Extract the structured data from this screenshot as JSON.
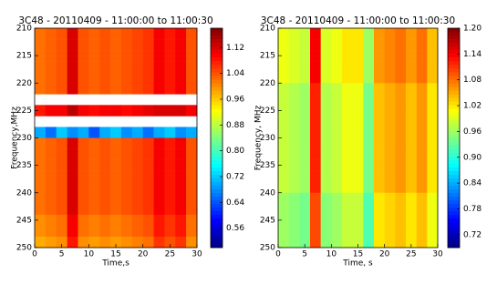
{
  "chart_data": [
    {
      "type": "heatmap",
      "title": "3C48 - 20110409 - 11:00:00 to 11:00:30",
      "x_label": "Time,s",
      "y_label": "Frequency,MHz",
      "colormap": "jet",
      "y_inverted": true,
      "xbins": [
        0,
        2,
        4,
        6,
        8,
        10,
        12,
        14,
        16,
        18,
        20,
        22,
        24,
        26,
        28,
        30
      ],
      "ybins": [
        210,
        212,
        214,
        216,
        218,
        220,
        222,
        224,
        226,
        228,
        230,
        232,
        234,
        236,
        238,
        240,
        242,
        244,
        246,
        248,
        250
      ],
      "values": [
        [
          1.02,
          1.03,
          1.04,
          1.12,
          1.04,
          1.03,
          1.04,
          1.03,
          1.04,
          1.05,
          1.06,
          1.1,
          1.08,
          1.1,
          1.04
        ],
        [
          1.02,
          1.03,
          1.04,
          1.12,
          1.04,
          1.03,
          1.04,
          1.03,
          1.04,
          1.05,
          1.06,
          1.1,
          1.08,
          1.1,
          1.04
        ],
        [
          1.02,
          1.03,
          1.04,
          1.12,
          1.04,
          1.03,
          1.04,
          1.03,
          1.04,
          1.05,
          1.06,
          1.1,
          1.08,
          1.1,
          1.04
        ],
        [
          1.02,
          1.03,
          1.04,
          1.12,
          1.04,
          1.03,
          1.04,
          1.03,
          1.04,
          1.05,
          1.06,
          1.1,
          1.08,
          1.1,
          1.04
        ],
        [
          1.02,
          1.03,
          1.04,
          1.12,
          1.04,
          1.03,
          1.04,
          1.03,
          1.04,
          1.05,
          1.06,
          1.1,
          1.08,
          1.1,
          1.04
        ],
        [
          1.02,
          1.03,
          1.04,
          1.12,
          1.04,
          1.03,
          1.04,
          1.03,
          1.04,
          1.05,
          1.06,
          1.1,
          1.08,
          1.1,
          1.04
        ],
        [
          null,
          null,
          null,
          null,
          null,
          null,
          null,
          null,
          null,
          null,
          null,
          null,
          null,
          null,
          null
        ],
        [
          1.08,
          1.1,
          1.1,
          1.14,
          1.1,
          1.09,
          1.1,
          1.1,
          1.09,
          1.1,
          1.11,
          1.12,
          1.12,
          1.12,
          1.1
        ],
        [
          null,
          null,
          null,
          null,
          null,
          null,
          null,
          null,
          null,
          null,
          null,
          null,
          null,
          null,
          null
        ],
        [
          0.7,
          0.66,
          0.72,
          0.68,
          0.7,
          0.64,
          0.7,
          0.72,
          0.68,
          0.7,
          0.66,
          0.7,
          0.72,
          0.68,
          0.7
        ],
        [
          1.02,
          1.03,
          1.04,
          1.12,
          1.04,
          1.03,
          1.04,
          1.03,
          1.04,
          1.05,
          1.06,
          1.1,
          1.08,
          1.1,
          1.04
        ],
        [
          1.02,
          1.03,
          1.04,
          1.12,
          1.04,
          1.03,
          1.04,
          1.03,
          1.04,
          1.05,
          1.06,
          1.1,
          1.08,
          1.1,
          1.04
        ],
        [
          1.02,
          1.03,
          1.04,
          1.12,
          1.04,
          1.03,
          1.04,
          1.03,
          1.04,
          1.05,
          1.06,
          1.1,
          1.08,
          1.1,
          1.04
        ],
        [
          1.02,
          1.03,
          1.04,
          1.12,
          1.04,
          1.03,
          1.04,
          1.03,
          1.04,
          1.05,
          1.06,
          1.1,
          1.08,
          1.1,
          1.04
        ],
        [
          1.02,
          1.03,
          1.04,
          1.12,
          1.04,
          1.03,
          1.04,
          1.03,
          1.04,
          1.05,
          1.06,
          1.1,
          1.08,
          1.1,
          1.04
        ],
        [
          1.02,
          1.03,
          1.04,
          1.12,
          1.04,
          1.03,
          1.04,
          1.03,
          1.04,
          1.05,
          1.06,
          1.1,
          1.08,
          1.1,
          1.04
        ],
        [
          1.02,
          1.03,
          1.04,
          1.12,
          1.04,
          1.03,
          1.04,
          1.03,
          1.04,
          1.05,
          1.06,
          1.1,
          1.08,
          1.1,
          1.04
        ],
        [
          1.0,
          1.01,
          1.02,
          1.1,
          1.02,
          1.01,
          1.02,
          1.01,
          1.02,
          1.03,
          1.04,
          1.08,
          1.06,
          1.08,
          1.02
        ],
        [
          1.0,
          1.01,
          1.02,
          1.1,
          1.02,
          1.01,
          1.02,
          1.01,
          1.02,
          1.03,
          1.04,
          1.08,
          1.06,
          1.08,
          1.02
        ],
        [
          0.98,
          0.99,
          1.0,
          1.08,
          1.0,
          0.99,
          1.0,
          0.99,
          1.0,
          1.01,
          1.02,
          1.06,
          1.04,
          1.06,
          1.0
        ]
      ],
      "xlim": [
        0,
        30
      ],
      "xticks": [
        0,
        5,
        10,
        15,
        20,
        25,
        30
      ],
      "ylim": [
        210,
        250
      ],
      "yticks": [
        210,
        215,
        220,
        225,
        230,
        235,
        240,
        245,
        250
      ],
      "clim": [
        0.5,
        1.18
      ],
      "cticks": [
        0.56,
        0.64,
        0.72,
        {
          "value": 0.8,
          "label": "0.80"
        },
        0.88,
        0.96,
        1.04,
        1.12
      ]
    },
    {
      "type": "heatmap",
      "title": "3C48 - 20110409 - 11:00:00 to 11:00:30",
      "x_label": "Time, s",
      "y_label": "Frequency, MHz",
      "colormap": "jet",
      "y_inverted": true,
      "xbins": [
        0,
        2,
        4,
        6,
        8,
        10,
        12,
        14,
        16,
        18,
        20,
        22,
        24,
        26,
        28,
        30
      ],
      "ybins": [
        210,
        212,
        214,
        216,
        218,
        220,
        222,
        224,
        226,
        228,
        230,
        232,
        234,
        236,
        238,
        240,
        242,
        244,
        246,
        248,
        250
      ],
      "values": [
        [
          1.0,
          0.99,
          0.98,
          1.14,
          0.99,
          1.0,
          1.02,
          1.02,
          0.96,
          1.06,
          1.07,
          1.08,
          1.06,
          1.08,
          1.04
        ],
        [
          1.0,
          0.99,
          0.98,
          1.14,
          0.99,
          1.0,
          1.02,
          1.02,
          0.96,
          1.06,
          1.07,
          1.08,
          1.06,
          1.08,
          1.04
        ],
        [
          1.0,
          0.99,
          0.98,
          1.14,
          0.99,
          1.0,
          1.02,
          1.02,
          0.96,
          1.06,
          1.07,
          1.08,
          1.06,
          1.08,
          1.04
        ],
        [
          1.0,
          0.99,
          0.98,
          1.14,
          0.99,
          1.0,
          1.02,
          1.02,
          0.96,
          1.06,
          1.07,
          1.08,
          1.06,
          1.08,
          1.04
        ],
        [
          1.0,
          0.99,
          0.98,
          1.14,
          0.99,
          1.0,
          1.02,
          1.02,
          0.96,
          1.06,
          1.07,
          1.08,
          1.06,
          1.08,
          1.04
        ],
        [
          0.98,
          0.97,
          0.96,
          1.12,
          0.97,
          0.98,
          1.0,
          1.0,
          0.94,
          1.04,
          1.05,
          1.06,
          1.04,
          1.06,
          1.02
        ],
        [
          0.98,
          0.97,
          0.96,
          1.12,
          0.97,
          0.98,
          1.0,
          1.0,
          0.94,
          1.04,
          1.05,
          1.06,
          1.04,
          1.06,
          1.02
        ],
        [
          0.98,
          0.97,
          0.96,
          1.12,
          0.97,
          0.98,
          1.0,
          1.0,
          0.94,
          1.04,
          1.05,
          1.06,
          1.04,
          1.06,
          1.02
        ],
        [
          0.98,
          0.97,
          0.96,
          1.12,
          0.97,
          0.98,
          1.0,
          1.0,
          0.94,
          1.04,
          1.05,
          1.06,
          1.04,
          1.06,
          1.02
        ],
        [
          0.98,
          0.97,
          0.96,
          1.12,
          0.97,
          0.98,
          1.0,
          1.0,
          0.94,
          1.04,
          1.05,
          1.06,
          1.04,
          1.06,
          1.02
        ],
        [
          0.98,
          0.97,
          0.96,
          1.12,
          0.97,
          0.98,
          1.0,
          1.0,
          0.94,
          1.04,
          1.05,
          1.06,
          1.04,
          1.06,
          1.02
        ],
        [
          0.98,
          0.97,
          0.96,
          1.12,
          0.97,
          0.98,
          1.0,
          1.0,
          0.94,
          1.04,
          1.05,
          1.06,
          1.04,
          1.06,
          1.02
        ],
        [
          0.98,
          0.97,
          0.96,
          1.12,
          0.97,
          0.98,
          1.0,
          1.0,
          0.94,
          1.04,
          1.05,
          1.06,
          1.04,
          1.06,
          1.02
        ],
        [
          0.98,
          0.97,
          0.96,
          1.12,
          0.97,
          0.98,
          1.0,
          1.0,
          0.94,
          1.04,
          1.05,
          1.06,
          1.04,
          1.06,
          1.02
        ],
        [
          0.98,
          0.97,
          0.96,
          1.12,
          0.97,
          0.98,
          1.0,
          1.0,
          0.94,
          1.04,
          1.05,
          1.06,
          1.04,
          1.06,
          1.02
        ],
        [
          0.96,
          0.95,
          0.94,
          1.1,
          0.95,
          0.96,
          0.98,
          0.98,
          0.92,
          1.02,
          1.03,
          1.04,
          1.02,
          1.04,
          1.0
        ],
        [
          0.96,
          0.95,
          0.94,
          1.1,
          0.95,
          0.96,
          0.98,
          0.98,
          0.92,
          1.02,
          1.03,
          1.04,
          1.02,
          1.04,
          1.0
        ],
        [
          0.96,
          0.95,
          0.94,
          1.1,
          0.95,
          0.96,
          0.98,
          0.98,
          0.92,
          1.02,
          1.03,
          1.04,
          1.02,
          1.04,
          1.0
        ],
        [
          0.96,
          0.95,
          0.94,
          1.1,
          0.95,
          0.96,
          0.98,
          0.98,
          0.92,
          1.02,
          1.03,
          1.04,
          1.02,
          1.04,
          1.0
        ],
        [
          0.96,
          0.95,
          0.94,
          1.1,
          0.95,
          0.96,
          0.98,
          0.98,
          0.92,
          1.02,
          1.03,
          1.04,
          1.02,
          1.04,
          1.0
        ]
      ],
      "xlim": [
        0,
        30
      ],
      "xticks": [
        0,
        5,
        10,
        15,
        20,
        25,
        30
      ],
      "ylim": [
        210,
        250
      ],
      "yticks": [
        210,
        215,
        220,
        225,
        230,
        235,
        240,
        245,
        250
      ],
      "clim": [
        0.69,
        1.2
      ],
      "cticks": [
        0.72,
        0.78,
        0.84,
        {
          "value": 0.9,
          "label": "0.90"
        },
        0.96,
        1.02,
        1.08,
        1.14,
        {
          "value": 1.2,
          "label": "1.20"
        }
      ]
    }
  ]
}
